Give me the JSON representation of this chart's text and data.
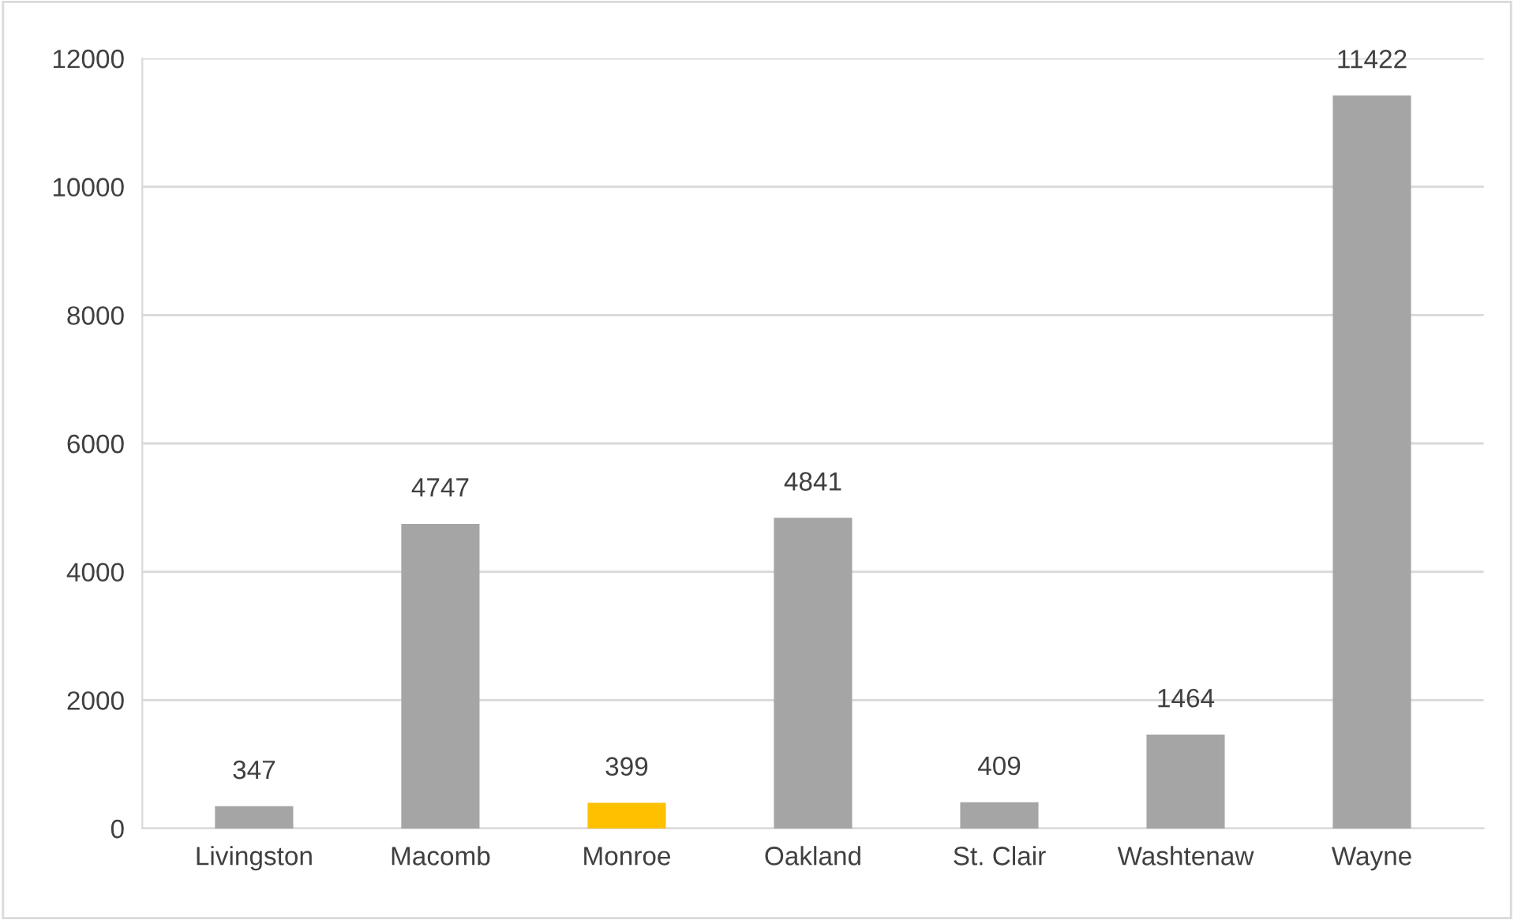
{
  "chart_data": {
    "type": "bar",
    "categories": [
      "Livingston",
      "Macomb",
      "Monroe",
      "Oakland",
      "St. Clair",
      "Washtenaw",
      "Wayne"
    ],
    "values": [
      347,
      4747,
      399,
      4841,
      409,
      1464,
      11422
    ],
    "colors": [
      "#a5a5a5",
      "#a5a5a5",
      "#ffc000",
      "#a5a5a5",
      "#a5a5a5",
      "#a5a5a5",
      "#a5a5a5"
    ],
    "ylim": [
      0,
      12000
    ],
    "yticks": [
      0,
      2000,
      4000,
      6000,
      8000,
      10000,
      12000
    ],
    "grid": "y",
    "data_labels": true
  }
}
